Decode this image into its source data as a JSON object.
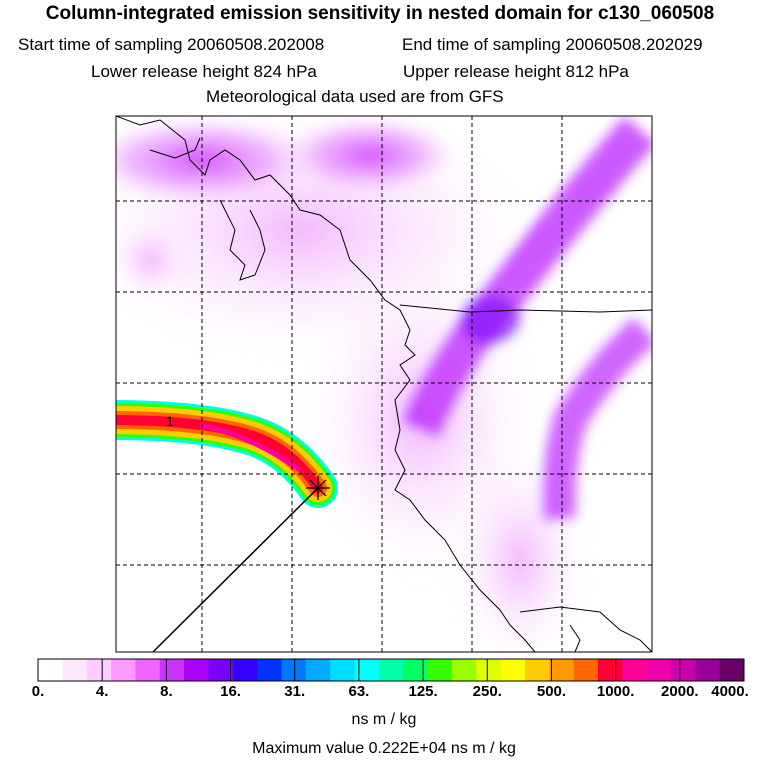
{
  "header": {
    "title": "Column-integrated emission sensitivity in nested domain for c130_060508",
    "start_time": "Start time of sampling 20060508.202008",
    "end_time": "End time of sampling 20060508.202029",
    "lower_release": "Lower release height  824 hPa",
    "upper_release": "Upper release height  812 hPa",
    "met_data": "Meteorological data used are from GFS"
  },
  "map": {
    "release_marker_label": "1",
    "grid": "dashed",
    "colors": {
      "plume_core": "#ff0033",
      "plume_mid": "#ffcc00",
      "plume_edge": "#00ffdd",
      "background_band": "#cc33ff",
      "coastline": "#000000"
    }
  },
  "colorbar": {
    "tick_labels": [
      "0.",
      "4.",
      "8.",
      "16.",
      "31.",
      "63.",
      "125.",
      "250.",
      "500.",
      "1000.",
      "2000.",
      "4000."
    ],
    "colors": [
      "#ffffff",
      "#ffe8ff",
      "#ffccff",
      "#ff99ff",
      "#ee66ff",
      "#cc33ff",
      "#aa00ff",
      "#7700ff",
      "#3300ff",
      "#0033ff",
      "#0077ff",
      "#00aaff",
      "#00ddff",
      "#00ffff",
      "#00ffaa",
      "#00ff66",
      "#33ff00",
      "#99ff00",
      "#ddff00",
      "#ffff00",
      "#ffcc00",
      "#ff9900",
      "#ff6600",
      "#ff0033",
      "#ff0099",
      "#ee00aa",
      "#cc00aa",
      "#990099",
      "#660066"
    ],
    "units": "ns m / kg"
  },
  "footer": {
    "max_value": "Maximum value  0.222E+04 ns m / kg"
  }
}
